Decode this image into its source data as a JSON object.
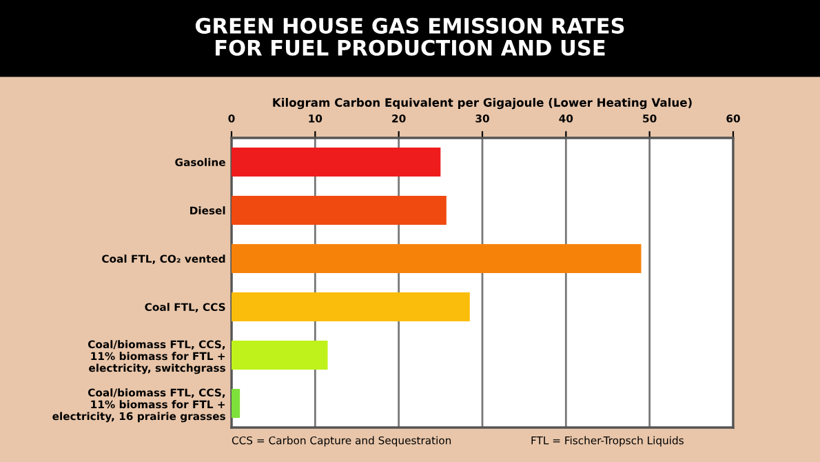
{
  "chart_data": {
    "type": "bar",
    "orientation": "horizontal",
    "title": "GREEN HOUSE GAS EMISSION RATES\nFOR FUEL PRODUCTION AND USE",
    "xlabel": "Kilogram Carbon Equivalent per Gigajoule (Lower Heating Value)",
    "categories": [
      "Gasoline",
      "Diesel",
      "Coal FTL, CO₂ vented",
      "Coal FTL, CCS",
      "Coal/biomass FTL, CCS,\n11% biomass for FTL +\nelectricity, switchgrass",
      "Coal/biomass FTL, CCS,\n11% biomass for FTL +\nelectricity, 16 prairie grasses"
    ],
    "values": [
      25,
      25.7,
      49,
      28.5,
      11.5,
      1
    ],
    "colors": [
      "#ee1c1c",
      "#f04a10",
      "#f7820a",
      "#fbbd0c",
      "#bff21a",
      "#7ee03a"
    ],
    "xlim": [
      0,
      60
    ],
    "xticks": [
      0,
      10,
      20,
      30,
      40,
      50,
      60
    ],
    "grid": "x",
    "annotations": [
      "CCS = Carbon Capture and Sequestration",
      "FTL = Fischer-Tropsch Liquids"
    ]
  }
}
